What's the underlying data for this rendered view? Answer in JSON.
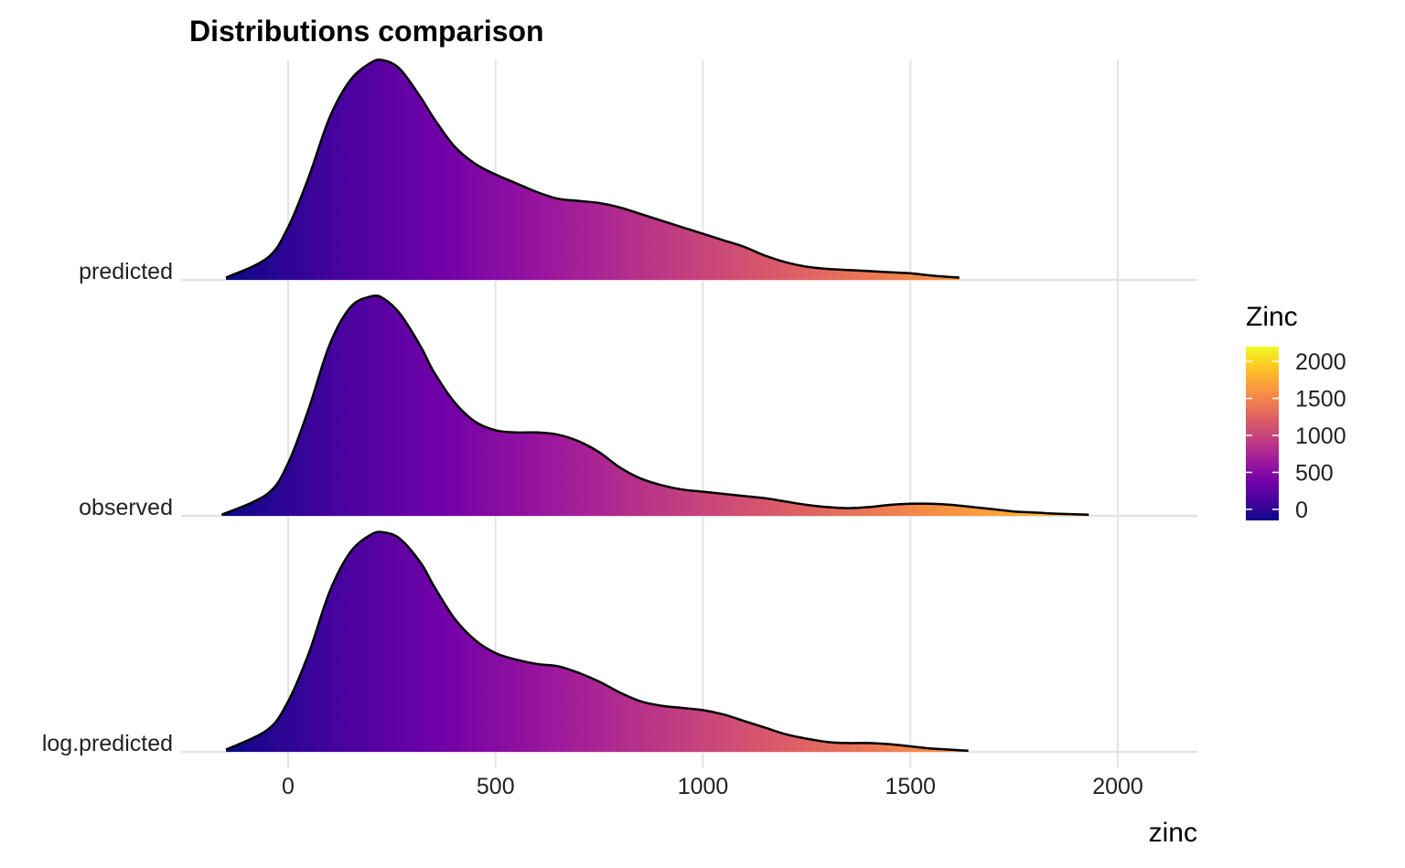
{
  "chart_data": {
    "type": "area",
    "subtype": "ridgeline",
    "title": "Distributions comparison",
    "xlabel": "zinc",
    "ylabel": "",
    "xlim": [
      -150,
      2180
    ],
    "x_ticks": [
      0,
      500,
      1000,
      1500,
      2000
    ],
    "grid": true,
    "categories": [
      "predicted",
      "observed",
      "log.predicted"
    ],
    "series": [
      {
        "name": "predicted",
        "x": [
          -150,
          -50,
          0,
          50,
          100,
          150,
          200,
          230,
          270,
          320,
          350,
          400,
          450,
          500,
          550,
          600,
          650,
          700,
          750,
          800,
          850,
          900,
          950,
          1000,
          1050,
          1100,
          1150,
          1200,
          1250,
          1300,
          1350,
          1400,
          1450,
          1500,
          1550,
          1618
        ],
        "density": [
          0.01,
          0.1,
          0.24,
          0.47,
          0.74,
          0.91,
          0.99,
          1.0,
          0.96,
          0.83,
          0.74,
          0.61,
          0.53,
          0.48,
          0.44,
          0.4,
          0.37,
          0.36,
          0.35,
          0.33,
          0.3,
          0.27,
          0.24,
          0.21,
          0.18,
          0.15,
          0.11,
          0.08,
          0.06,
          0.05,
          0.045,
          0.04,
          0.035,
          0.03,
          0.02,
          0.01
        ]
      },
      {
        "name": "observed",
        "x": [
          -160,
          -50,
          0,
          50,
          100,
          150,
          200,
          230,
          270,
          320,
          350,
          400,
          450,
          500,
          550,
          600,
          650,
          700,
          750,
          800,
          850,
          900,
          950,
          1000,
          1050,
          1100,
          1150,
          1200,
          1250,
          1300,
          1350,
          1400,
          1450,
          1500,
          1550,
          1600,
          1650,
          1700,
          1750,
          1800,
          1850,
          1930
        ],
        "density": [
          0.005,
          0.1,
          0.24,
          0.49,
          0.78,
          0.95,
          1.0,
          0.99,
          0.92,
          0.77,
          0.66,
          0.52,
          0.43,
          0.39,
          0.38,
          0.38,
          0.37,
          0.34,
          0.29,
          0.22,
          0.17,
          0.14,
          0.12,
          0.11,
          0.1,
          0.09,
          0.08,
          0.065,
          0.05,
          0.04,
          0.035,
          0.04,
          0.05,
          0.055,
          0.055,
          0.05,
          0.04,
          0.03,
          0.02,
          0.015,
          0.01,
          0.005
        ]
      },
      {
        "name": "log.predicted",
        "x": [
          -150,
          -50,
          0,
          50,
          100,
          150,
          200,
          230,
          270,
          320,
          350,
          400,
          450,
          500,
          550,
          600,
          650,
          700,
          750,
          800,
          850,
          900,
          950,
          1000,
          1050,
          1100,
          1150,
          1200,
          1250,
          1300,
          1350,
          1400,
          1450,
          1500,
          1550,
          1640
        ],
        "density": [
          0.01,
          0.1,
          0.23,
          0.45,
          0.73,
          0.91,
          0.99,
          1.0,
          0.97,
          0.86,
          0.76,
          0.61,
          0.51,
          0.45,
          0.42,
          0.4,
          0.39,
          0.36,
          0.32,
          0.27,
          0.23,
          0.21,
          0.2,
          0.19,
          0.17,
          0.14,
          0.11,
          0.08,
          0.06,
          0.045,
          0.04,
          0.04,
          0.035,
          0.025,
          0.015,
          0.005
        ]
      }
    ],
    "fill_scale": {
      "name": "Zinc",
      "type": "plasma",
      "range": [
        -150,
        2200
      ],
      "breaks": [
        0,
        500,
        1000,
        1500,
        2000
      ],
      "colors": [
        "#0d0887",
        "#46039f",
        "#7201a8",
        "#9c179e",
        "#bd3786",
        "#d8576b",
        "#ed7953",
        "#fb9f3a",
        "#fdca26",
        "#f0f921"
      ]
    },
    "legend": {
      "title": "Zinc",
      "position": "right"
    }
  }
}
